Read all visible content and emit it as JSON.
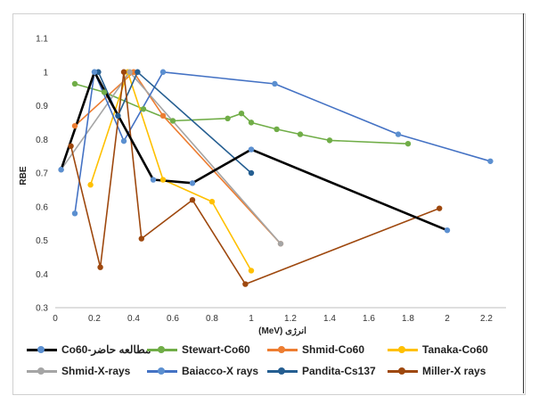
{
  "chart_data": {
    "type": "line",
    "title": "",
    "xlabel": "انرژی (MeV)",
    "ylabel": "RBE",
    "xlim": [
      0,
      2.3
    ],
    "ylim": [
      0.3,
      1.1
    ],
    "x_ticks": [
      "0",
      "0.2",
      "0.4",
      "0.6",
      "0.8",
      "1",
      "1.2",
      "1.4",
      "1.6",
      "1.8",
      "2",
      "2.2"
    ],
    "y_ticks": [
      "0.3",
      "0.4",
      "0.5",
      "0.6",
      "0.7",
      "0.8",
      "0.9",
      "1",
      "1.1"
    ],
    "grid": false,
    "legend_position": "bottom",
    "series": [
      {
        "name": "مطالعه حاضر-Co60",
        "color": "#000000",
        "marker_color": "#5b8fd0",
        "x": [
          0.03,
          0.2,
          0.5,
          0.7,
          1.0,
          2.0
        ],
        "y": [
          0.71,
          1.0,
          0.68,
          0.67,
          0.77,
          0.53
        ]
      },
      {
        "name": "Stewart-Co60",
        "color": "#70ad47",
        "marker_color": "#70ad47",
        "x": [
          0.1,
          0.25,
          0.45,
          0.6,
          0.88,
          0.95,
          1.0,
          1.13,
          1.25,
          1.4,
          1.8
        ],
        "y": [
          0.965,
          0.94,
          0.89,
          0.855,
          0.862,
          0.877,
          0.85,
          0.83,
          0.815,
          0.797,
          0.787
        ]
      },
      {
        "name": "Shmid-Co60",
        "color": "#ed7d31",
        "marker_color": "#ed7d31",
        "x": [
          0.1,
          0.4,
          0.55,
          1.15
        ],
        "y": [
          0.84,
          1.0,
          0.87,
          0.49
        ]
      },
      {
        "name": "Tanaka-Co60",
        "color": "#ffc000",
        "marker_color": "#ffc000",
        "x": [
          0.18,
          0.37,
          0.55,
          0.8,
          1.0
        ],
        "y": [
          0.665,
          1.0,
          0.68,
          0.615,
          0.41
        ]
      },
      {
        "name": "Shmid-X-rays",
        "color": "#a5a5a5",
        "marker_color": "#a5a5a5",
        "x": [
          0.03,
          0.38,
          1.15
        ],
        "y": [
          0.71,
          1.0,
          0.49
        ]
      },
      {
        "name": "Baiacco-X rays",
        "color": "#4472c4",
        "marker_color": "#5b8fd0",
        "x": [
          0.1,
          0.2,
          0.35,
          0.55,
          1.12,
          1.75,
          2.22
        ],
        "y": [
          0.58,
          1.0,
          0.795,
          1.0,
          0.965,
          0.815,
          0.735
        ]
      },
      {
        "name": "Pandita-Cs137",
        "color": "#255e91",
        "marker_color": "#255e91",
        "x": [
          0.22,
          0.32,
          0.42,
          1.0
        ],
        "y": [
          1.0,
          0.87,
          1.0,
          0.7
        ]
      },
      {
        "name": "Miller-X rays",
        "color": "#9e480e",
        "marker_color": "#9e480e",
        "x": [
          0.08,
          0.23,
          0.35,
          0.44,
          0.7,
          0.97,
          1.96
        ],
        "y": [
          0.78,
          0.42,
          1.0,
          0.505,
          0.62,
          0.37,
          0.595
        ]
      }
    ]
  }
}
